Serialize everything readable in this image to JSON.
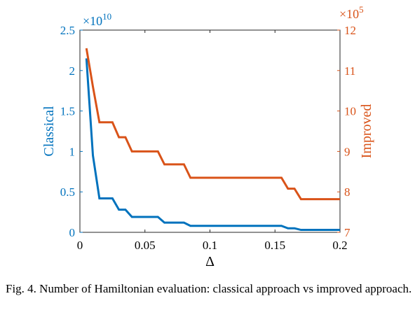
{
  "caption": "Fig. 4.   Number of Hamiltonian evaluation: classical approach vs improved approach.",
  "chart_data": {
    "type": "line",
    "xlabel": "Δ",
    "xlim": [
      0,
      0.2
    ],
    "x_ticks": [
      "0",
      "0.05",
      "0.1",
      "0.15",
      "0.2"
    ],
    "x_tick_values": [
      0,
      0.05,
      0.1,
      0.15,
      0.2
    ],
    "left_axis": {
      "label": "Classical",
      "color": "#0072BD",
      "ylim": [
        0,
        2.5
      ],
      "exponent_label": "×10",
      "exponent": "10",
      "ticks": [
        "0",
        "0.5",
        "1",
        "1.5",
        "2",
        "2.5"
      ],
      "tick_values": [
        0,
        0.5,
        1,
        1.5,
        2,
        2.5
      ]
    },
    "right_axis": {
      "label": "Improved",
      "color": "#D95319",
      "ylim": [
        7,
        12
      ],
      "exponent_label": "×10",
      "exponent": "5",
      "ticks": [
        "7",
        "8",
        "9",
        "10",
        "11",
        "12"
      ],
      "tick_values": [
        7,
        8,
        9,
        10,
        11,
        12
      ]
    },
    "series": [
      {
        "name": "Classical",
        "axis": "left",
        "color": "#0072BD",
        "points": [
          [
            0.005,
            2.15
          ],
          [
            0.01,
            0.95
          ],
          [
            0.015,
            0.42
          ],
          [
            0.02,
            0.42
          ],
          [
            0.025,
            0.42
          ],
          [
            0.03,
            0.28
          ],
          [
            0.035,
            0.28
          ],
          [
            0.04,
            0.19
          ],
          [
            0.045,
            0.19
          ],
          [
            0.05,
            0.19
          ],
          [
            0.055,
            0.19
          ],
          [
            0.06,
            0.19
          ],
          [
            0.065,
            0.12
          ],
          [
            0.07,
            0.12
          ],
          [
            0.075,
            0.12
          ],
          [
            0.08,
            0.12
          ],
          [
            0.085,
            0.08
          ],
          [
            0.09,
            0.08
          ],
          [
            0.095,
            0.08
          ],
          [
            0.1,
            0.08
          ],
          [
            0.105,
            0.08
          ],
          [
            0.11,
            0.08
          ],
          [
            0.115,
            0.08
          ],
          [
            0.12,
            0.08
          ],
          [
            0.125,
            0.08
          ],
          [
            0.13,
            0.08
          ],
          [
            0.135,
            0.08
          ],
          [
            0.14,
            0.08
          ],
          [
            0.145,
            0.08
          ],
          [
            0.15,
            0.08
          ],
          [
            0.155,
            0.08
          ],
          [
            0.16,
            0.05
          ],
          [
            0.165,
            0.05
          ],
          [
            0.17,
            0.03
          ],
          [
            0.175,
            0.03
          ],
          [
            0.18,
            0.03
          ],
          [
            0.185,
            0.03
          ],
          [
            0.19,
            0.03
          ],
          [
            0.195,
            0.03
          ],
          [
            0.2,
            0.03
          ]
        ]
      },
      {
        "name": "Improved",
        "axis": "right",
        "color": "#D95319",
        "points": [
          [
            0.005,
            11.55
          ],
          [
            0.01,
            10.6
          ],
          [
            0.015,
            9.72
          ],
          [
            0.02,
            9.72
          ],
          [
            0.025,
            9.72
          ],
          [
            0.03,
            9.35
          ],
          [
            0.035,
            9.35
          ],
          [
            0.04,
            9.0
          ],
          [
            0.045,
            9.0
          ],
          [
            0.05,
            9.0
          ],
          [
            0.055,
            9.0
          ],
          [
            0.06,
            9.0
          ],
          [
            0.065,
            8.68
          ],
          [
            0.07,
            8.68
          ],
          [
            0.075,
            8.68
          ],
          [
            0.08,
            8.68
          ],
          [
            0.085,
            8.35
          ],
          [
            0.09,
            8.35
          ],
          [
            0.095,
            8.35
          ],
          [
            0.1,
            8.35
          ],
          [
            0.105,
            8.35
          ],
          [
            0.11,
            8.35
          ],
          [
            0.115,
            8.35
          ],
          [
            0.12,
            8.35
          ],
          [
            0.125,
            8.35
          ],
          [
            0.13,
            8.35
          ],
          [
            0.135,
            8.35
          ],
          [
            0.14,
            8.35
          ],
          [
            0.145,
            8.35
          ],
          [
            0.15,
            8.35
          ],
          [
            0.155,
            8.35
          ],
          [
            0.16,
            8.08
          ],
          [
            0.165,
            8.08
          ],
          [
            0.17,
            7.82
          ],
          [
            0.175,
            7.82
          ],
          [
            0.18,
            7.82
          ],
          [
            0.185,
            7.82
          ],
          [
            0.19,
            7.82
          ],
          [
            0.195,
            7.82
          ],
          [
            0.2,
            7.82
          ]
        ]
      }
    ],
    "grid": false,
    "box": true
  }
}
